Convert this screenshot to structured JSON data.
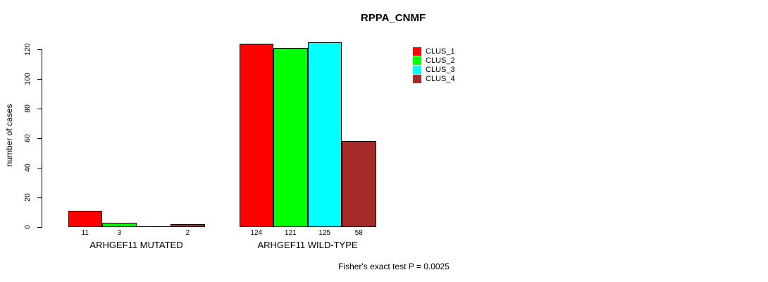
{
  "title": "RPPA_CNMF",
  "y_axis_label": "number of cases",
  "footer": "Fisher's exact test P = 0.0025",
  "colors": {
    "axis": "#000000",
    "text": "#000000",
    "background": "#ffffff"
  },
  "chart_data": {
    "type": "bar",
    "title": "RPPA_CNMF",
    "xlabel": "",
    "ylabel": "number of cases",
    "ylim": [
      0,
      120
    ],
    "yticks": [
      0,
      20,
      40,
      60,
      80,
      100,
      120
    ],
    "grid": false,
    "legend_position": "top-right",
    "categories": [
      "ARHGEF11 MUTATED",
      "ARHGEF11 WILD-TYPE"
    ],
    "series": [
      {
        "name": "CLUS_1",
        "color": "#FF0000",
        "values": [
          11,
          124
        ]
      },
      {
        "name": "CLUS_2",
        "color": "#00FF00",
        "values": [
          3,
          121
        ]
      },
      {
        "name": "CLUS_3",
        "color": "#00FFFF",
        "values": [
          0,
          125
        ]
      },
      {
        "name": "CLUS_4",
        "color": "#A52A2A",
        "values": [
          2,
          58
        ]
      }
    ],
    "value_labels": [
      [
        "11",
        "3",
        "",
        "2"
      ],
      [
        "124",
        "121",
        "125",
        "58"
      ]
    ],
    "annotation": "Fisher's exact test P = 0.0025"
  }
}
